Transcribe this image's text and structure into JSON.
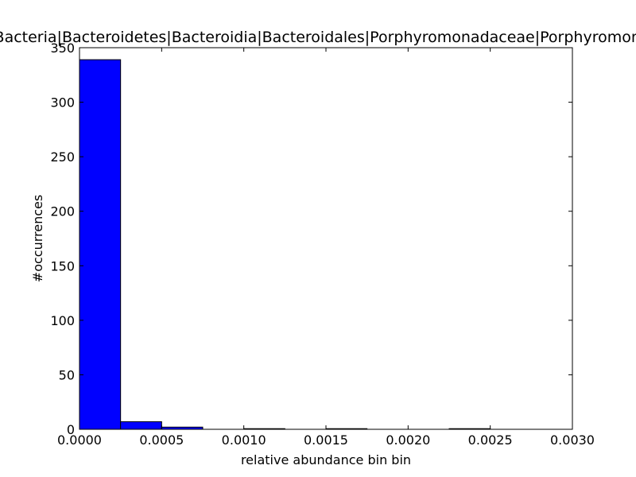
{
  "chart_data": {
    "type": "bar",
    "title": "Bacteria|Bacteroidetes|Bacteroidia|Bacteroidales|Porphyromonadaceae|Porphyromonas",
    "xlabel": "relative abundance bin bin",
    "ylabel": "#occurrences",
    "xlim": [
      0,
      0.003
    ],
    "ylim": [
      0,
      350
    ],
    "bin_width": 0.00025,
    "bins": [
      {
        "x0": 0.0,
        "value": 339
      },
      {
        "x0": 0.00025,
        "value": 7
      },
      {
        "x0": 0.0005,
        "value": 2
      },
      {
        "x0": 0.00075,
        "value": 0
      },
      {
        "x0": 0.001,
        "value": 0.3
      },
      {
        "x0": 0.00125,
        "value": 0
      },
      {
        "x0": 0.0015,
        "value": 0.3
      },
      {
        "x0": 0.00175,
        "value": 0
      },
      {
        "x0": 0.002,
        "value": 0
      },
      {
        "x0": 0.00225,
        "value": 0.3
      }
    ],
    "xticks": [
      0.0,
      0.0005,
      0.001,
      0.0015,
      0.002,
      0.0025,
      0.003
    ],
    "xtick_labels": [
      "0.0000",
      "0.0005",
      "0.0010",
      "0.0015",
      "0.0020",
      "0.0025",
      "0.0030"
    ],
    "yticks": [
      0,
      50,
      100,
      150,
      200,
      250,
      300,
      350
    ],
    "ytick_labels": [
      "0",
      "50",
      "100",
      "150",
      "200",
      "250",
      "300",
      "350"
    ],
    "colors": {
      "bar": "#0000ff",
      "edge": "#000000",
      "axes": "#000000",
      "background": "#ffffff"
    },
    "grid": false
  }
}
